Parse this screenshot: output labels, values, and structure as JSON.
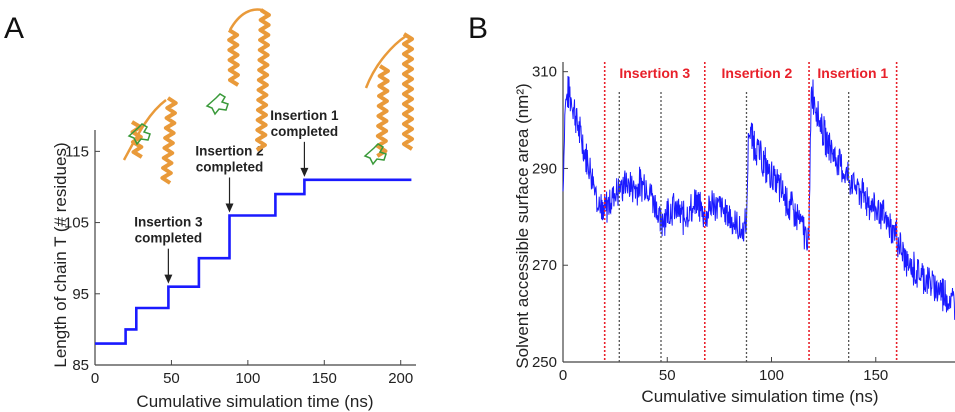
{
  "panels": {
    "a": "A",
    "b": "B"
  },
  "chart_data": [
    {
      "type": "line",
      "title": "",
      "xlabel": "Cumulative simulation time (ns)",
      "ylabel": "Length of chain T (# residues)",
      "xlim": [
        0,
        210
      ],
      "ylim": [
        85,
        118
      ],
      "xticks": [
        0,
        50,
        100,
        150,
        200
      ],
      "yticks": [
        85,
        95,
        105,
        115
      ],
      "grid": false,
      "line_color": "#1a1aff",
      "series": [
        {
          "x": [
            0,
            20,
            20,
            27,
            27,
            48,
            48,
            68,
            68,
            88,
            88,
            118,
            118,
            137,
            137,
            207
          ],
          "y": [
            88,
            88,
            90,
            90,
            93,
            93,
            96,
            96,
            100,
            100,
            106,
            106,
            109,
            109,
            111,
            111
          ]
        }
      ],
      "annotations": [
        {
          "line1": "Insertion 3",
          "line2": "completed",
          "x": 48,
          "y": 96
        },
        {
          "line1": "Insertion 2",
          "line2": "completed",
          "x": 88,
          "y": 106
        },
        {
          "line1": "Insertion 1",
          "line2": "completed",
          "x": 137,
          "y": 111
        }
      ],
      "insets": [
        {
          "name": "protein-structure-stage-1",
          "x": 30
        },
        {
          "name": "protein-structure-stage-2",
          "x": 82
        },
        {
          "name": "protein-structure-stage-3",
          "x": 190
        }
      ]
    },
    {
      "type": "line",
      "title": "",
      "xlabel": "Cumulative simulation time (ns)",
      "ylabel": "Solvent accessible surface area (nm²)",
      "xlim": [
        0,
        188
      ],
      "ylim": [
        250,
        312
      ],
      "xticks": [
        0,
        50,
        100,
        150
      ],
      "yticks": [
        250,
        270,
        290,
        310
      ],
      "grid": false,
      "line_color": "#1a1aff",
      "series": [
        {
          "x": [
            0,
            1,
            3,
            6,
            10,
            15,
            19,
            20,
            22,
            25,
            30,
            35,
            40,
            45,
            47,
            48,
            52,
            58,
            65,
            68,
            72,
            80,
            85,
            88,
            89,
            95,
            105,
            112,
            118,
            119,
            125,
            135,
            145,
            155,
            160,
            165,
            175,
            188
          ],
          "y": [
            286,
            303,
            306,
            301,
            294,
            287,
            280,
            281,
            283,
            285,
            287,
            286,
            287,
            282,
            278,
            280,
            282,
            280,
            283,
            280,
            283,
            280,
            277,
            278,
            298,
            292,
            285,
            280,
            275,
            307,
            297,
            289,
            284,
            279,
            276,
            270,
            267,
            262
          ]
        }
      ],
      "noise": 3.2,
      "markers_red": [
        {
          "x": 20,
          "label": ""
        },
        {
          "x": 68,
          "label": ""
        },
        {
          "x": 118,
          "label": ""
        },
        {
          "x": 160,
          "label": ""
        }
      ],
      "markers_gray": [
        27,
        47,
        88,
        137
      ],
      "regions": [
        {
          "label": "Insertion 3",
          "from": 20,
          "to": 68
        },
        {
          "label": "Insertion 2",
          "from": 68,
          "to": 118
        },
        {
          "label": "Insertion 1",
          "from": 118,
          "to": 160
        }
      ],
      "region_label_color": "#e8202a"
    }
  ]
}
